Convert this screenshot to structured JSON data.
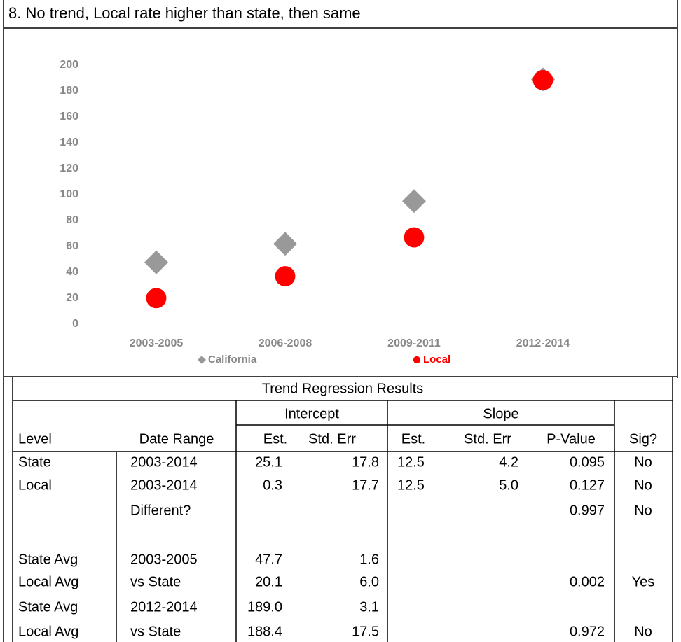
{
  "chart_data": {
    "type": "scatter",
    "title": "8. No trend, Local rate higher than state, then same",
    "categories": [
      "2003-2005",
      "2006-2008",
      "2009-2011",
      "2012-2014"
    ],
    "series": [
      {
        "name": "California",
        "color": "#999999",
        "marker": "diamond",
        "values": [
          47.7,
          62,
          95,
          189.0
        ]
      },
      {
        "name": "Local",
        "color": "#ff0000",
        "marker": "circle",
        "values": [
          20.1,
          37,
          67,
          188.4
        ]
      }
    ],
    "ylim": [
      0,
      200
    ],
    "yticks": [
      0,
      20,
      40,
      60,
      80,
      100,
      120,
      140,
      160,
      180,
      200
    ],
    "grid": false
  },
  "table": {
    "title": "Trend Regression Results",
    "group_headers": [
      "Intercept",
      "Slope"
    ],
    "headers": [
      "Level",
      "Date Range",
      "Est.",
      "Std. Err",
      "Est.",
      "Std. Err",
      "P-Value",
      "Sig?"
    ],
    "rows": [
      [
        "State",
        "2003-2014",
        "25.1",
        "17.8",
        "12.5",
        "4.2",
        "0.095",
        "No"
      ],
      [
        "Local",
        "2003-2014",
        "0.3",
        "17.7",
        "12.5",
        "5.0",
        "0.127",
        "No"
      ],
      [
        null,
        "Different?",
        null,
        null,
        null,
        null,
        "0.997",
        "No"
      ],
      [
        "State Avg",
        "2003-2005",
        "47.7",
        "1.6",
        null,
        null,
        null,
        null
      ],
      [
        "Local Avg",
        "vs State",
        "20.1",
        "6.0",
        null,
        null,
        "0.002",
        "Yes"
      ],
      [
        "State Avg",
        "2012-2014",
        "189.0",
        "3.1",
        null,
        null,
        null,
        null
      ],
      [
        "Local Avg",
        "vs State",
        "188.4",
        "17.5",
        null,
        null,
        "0.972",
        "No"
      ]
    ]
  }
}
